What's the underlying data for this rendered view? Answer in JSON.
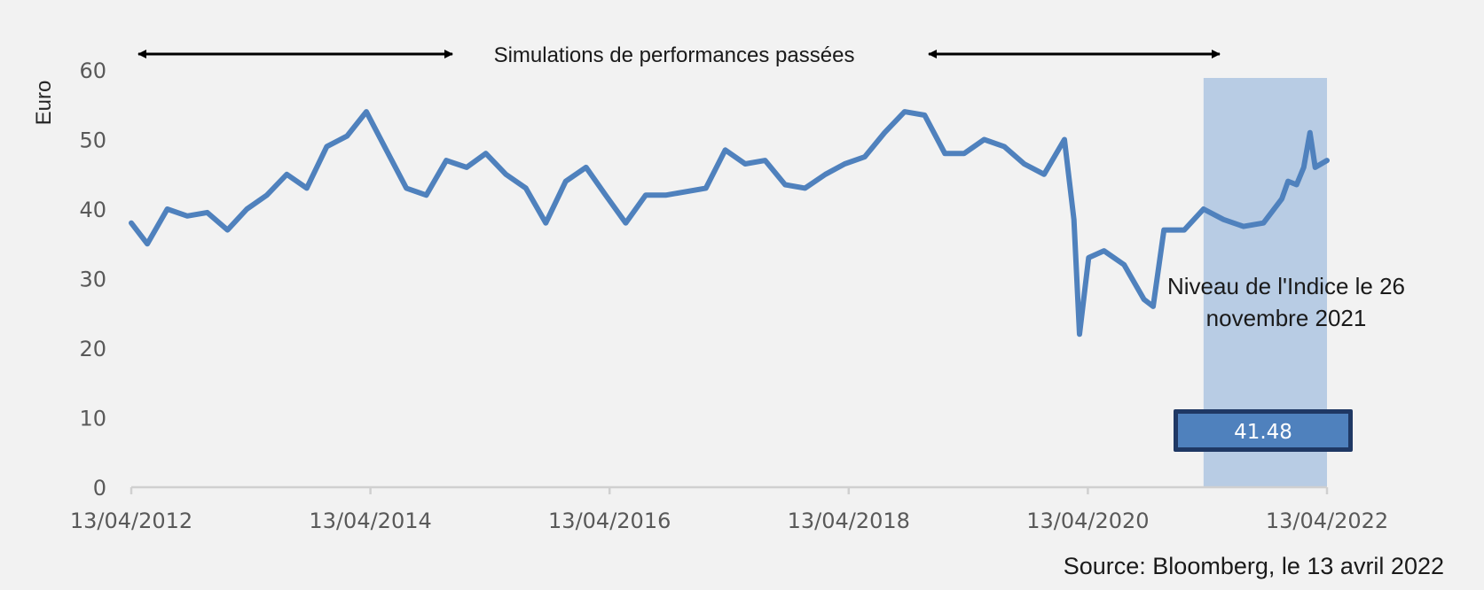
{
  "colors": {
    "background": "#f2f2f2",
    "series": "#4f81bd",
    "highlight": "#b8cce4",
    "badge_fill": "#4f81bd",
    "badge_border": "#1f3864",
    "axis": "#d0d0d0",
    "arrow": "#000000"
  },
  "chart_data": {
    "type": "line",
    "title": "",
    "xlabel": "",
    "ylabel": "Euro",
    "ylim": [
      0,
      60
    ],
    "yticks": [
      "0",
      "10",
      "20",
      "30",
      "40",
      "50",
      "60"
    ],
    "xticks": [
      "13/04/2012",
      "13/04/2014",
      "13/04/2016",
      "13/04/2018",
      "13/04/2020",
      "13/04/2022"
    ],
    "xlim": [
      "2012-04-13",
      "2022-04-13"
    ],
    "grid": false,
    "legend": "none",
    "series": [
      {
        "x": [
          "2012-04-13",
          "2012-06-01",
          "2012-08-01",
          "2012-10-01",
          "2012-12-01",
          "2013-02-01",
          "2013-04-01",
          "2013-06-01",
          "2013-08-01",
          "2013-10-01",
          "2013-12-01",
          "2014-02-01",
          "2014-04-01",
          "2014-06-01",
          "2014-08-01",
          "2014-10-01",
          "2014-12-01",
          "2015-02-01",
          "2015-04-01",
          "2015-06-01",
          "2015-08-01",
          "2015-10-01",
          "2015-12-01",
          "2016-02-01",
          "2016-04-01",
          "2016-06-01",
          "2016-08-01",
          "2016-10-01",
          "2016-12-01",
          "2017-02-01",
          "2017-04-01",
          "2017-06-01",
          "2017-08-01",
          "2017-10-01",
          "2017-12-01",
          "2018-02-01",
          "2018-04-01",
          "2018-06-01",
          "2018-08-01",
          "2018-10-01",
          "2018-12-01",
          "2019-02-01",
          "2019-04-01",
          "2019-06-01",
          "2019-08-01",
          "2019-10-01",
          "2019-12-01",
          "2020-02-01",
          "2020-03-01",
          "2020-03-18",
          "2020-04-15",
          "2020-06-01",
          "2020-08-01",
          "2020-10-01",
          "2020-10-29",
          "2020-12-01",
          "2021-02-01",
          "2021-04-01",
          "2021-06-01",
          "2021-08-01",
          "2021-10-01",
          "2021-11-26",
          "2021-12-15",
          "2022-01-10",
          "2022-02-01",
          "2022-02-20",
          "2022-03-08",
          "2022-04-13"
        ],
        "values": [
          38,
          35,
          40,
          39,
          39.5,
          37,
          40,
          42,
          45,
          43,
          49,
          50.5,
          54,
          48.5,
          43,
          42,
          47,
          46,
          48,
          45,
          43,
          38,
          44,
          46,
          42,
          38,
          42,
          42,
          42.5,
          43,
          48.5,
          46.5,
          47,
          43.5,
          43,
          45,
          46.5,
          47.5,
          51,
          54,
          53.5,
          48,
          48,
          50,
          49,
          46.5,
          45,
          50,
          38.5,
          22,
          33,
          34,
          32,
          27,
          26,
          37,
          37,
          40,
          38.5,
          37.5,
          38,
          41.48,
          44,
          43.5,
          46,
          51,
          46,
          47
        ]
      }
    ],
    "annotations": {
      "period_label": "Simulations de performances passées",
      "highlight_label_line1": "Niveau de l'Indice le 26",
      "highlight_label_line2": "novembre 2021",
      "highlight_start": "2021-04-01",
      "highlight_end": "2022-04-13",
      "level_value": "41.48"
    },
    "source": "Source: Bloomberg, le 13 avril 2022"
  }
}
